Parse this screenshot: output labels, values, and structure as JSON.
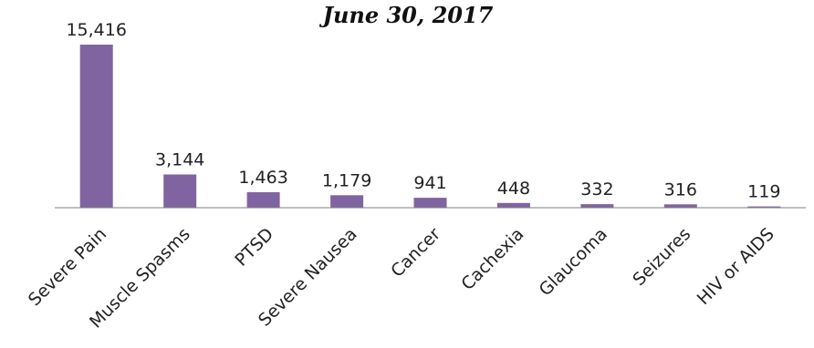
{
  "chart_data": {
    "type": "bar",
    "title": "June 30, 2017",
    "categories": [
      "Severe Pain",
      "Muscle Spasms",
      "PTSD",
      "Severe Nausea",
      "Cancer",
      "Cachexia",
      "Glaucoma",
      "Seizures",
      "HIV or AIDS"
    ],
    "values": [
      15416,
      3144,
      1463,
      1179,
      941,
      448,
      332,
      316,
      119
    ],
    "value_labels": [
      "15,416",
      "3,144",
      "1,463",
      "1,179",
      "941",
      "448",
      "332",
      "316",
      "119"
    ],
    "xlabel": "",
    "ylabel": "",
    "ylim": [
      0,
      15416
    ],
    "grid": false,
    "colors": {
      "bar": "#8064a2",
      "axis": "#7f7f7f"
    }
  }
}
